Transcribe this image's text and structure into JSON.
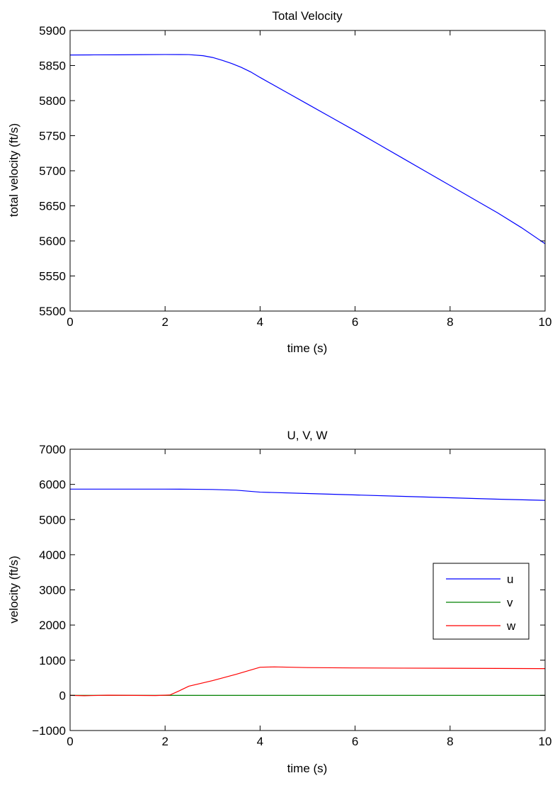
{
  "chart_data": [
    {
      "type": "line",
      "title": "Total Velocity",
      "xlabel": "time (s)",
      "ylabel": "total velocity (ft/s)",
      "xlim": [
        0,
        10
      ],
      "ylim": [
        5500,
        5900
      ],
      "xticks": [
        "0",
        "2",
        "4",
        "6",
        "8",
        "10"
      ],
      "yticks": [
        "5500",
        "5550",
        "5600",
        "5650",
        "5700",
        "5750",
        "5800",
        "5850",
        "5900"
      ],
      "grid": false,
      "series": [
        {
          "color": "#0000ff",
          "x": [
            0,
            0.5,
            1,
            1.5,
            2,
            2.5,
            2.8,
            3.0,
            3.2,
            3.4,
            3.6,
            3.8,
            4.0,
            4.5,
            5,
            5.5,
            6,
            6.5,
            7,
            7.5,
            8,
            8.5,
            9,
            9.5,
            10
          ],
          "y": [
            5865,
            5865.2,
            5865.3,
            5865.5,
            5865.7,
            5865.6,
            5864,
            5861.5,
            5857.5,
            5853,
            5847.5,
            5841,
            5833,
            5814,
            5795,
            5776,
            5757,
            5737.5,
            5718,
            5698.5,
            5679,
            5659.5,
            5640,
            5619,
            5596
          ]
        }
      ]
    },
    {
      "type": "line",
      "title": "U, V, W",
      "xlabel": "time (s)",
      "ylabel": "velocity (ft/s)",
      "xlim": [
        0,
        10
      ],
      "ylim": [
        -1000,
        7000
      ],
      "xticks": [
        "0",
        "2",
        "4",
        "6",
        "8",
        "10"
      ],
      "yticks": [
        "−1000",
        "0",
        "1000",
        "2000",
        "3000",
        "4000",
        "5000",
        "6000",
        "7000"
      ],
      "grid": false,
      "legend": "right",
      "series": [
        {
          "name": "u",
          "color": "#0000ff",
          "x": [
            0,
            1,
            2,
            2.5,
            3,
            3.5,
            4,
            5,
            6,
            7,
            8,
            9,
            10
          ],
          "y": [
            5865,
            5865,
            5865,
            5863,
            5855,
            5835,
            5780,
            5740,
            5700,
            5660,
            5620,
            5580,
            5545
          ]
        },
        {
          "name": "v",
          "color": "#008000",
          "x": [
            0,
            10
          ],
          "y": [
            0,
            0
          ]
        },
        {
          "name": "w",
          "color": "#ff0000",
          "x": [
            0,
            0.3,
            0.8,
            1.3,
            1.8,
            2.1,
            2.3,
            2.5,
            3.0,
            3.5,
            4.0,
            4.3,
            5,
            6,
            7,
            8,
            9,
            10
          ],
          "y": [
            0,
            -10,
            5,
            0,
            -5,
            10,
            130,
            260,
            420,
            600,
            800,
            810,
            790,
            780,
            775,
            770,
            765,
            760
          ]
        }
      ]
    }
  ]
}
